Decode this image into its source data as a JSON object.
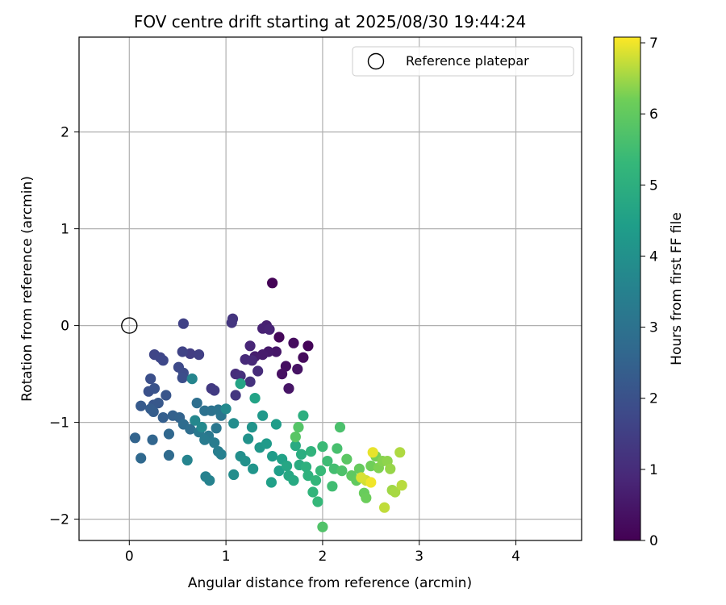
{
  "chart_data": {
    "type": "scatter",
    "title": "FOV centre drift starting at 2025/08/30 19:44:24",
    "xlabel": "Angular distance from reference (arcmin)",
    "ylabel": "Rotation from reference (arcmin)",
    "xlim": [
      -0.52,
      4.68
    ],
    "ylim": [
      -2.22,
      2.98
    ],
    "xticks": [
      0,
      1,
      2,
      3,
      4
    ],
    "yticks": [
      -2,
      -1,
      0,
      1,
      2
    ],
    "xtick_labels": [
      "0",
      "1",
      "2",
      "3",
      "4"
    ],
    "ytick_labels": [
      "−2",
      "−1",
      "0",
      "1",
      "2"
    ],
    "grid": true,
    "legend": {
      "position": "top-right",
      "entries": [
        "Reference platepar"
      ]
    },
    "reference_point": {
      "x": 0,
      "y": 0,
      "label": "Reference platepar"
    },
    "colorbar": {
      "label": "Hours from first FF file",
      "range": [
        0,
        7.08
      ],
      "ticks": [
        0,
        1,
        2,
        3,
        4,
        5,
        6,
        7
      ],
      "tick_labels": [
        "0",
        "1",
        "2",
        "3",
        "4",
        "5",
        "6",
        "7"
      ],
      "colormap": "viridis"
    },
    "points": [
      [
        1.48,
        0.44,
        0.05
      ],
      [
        1.85,
        -0.21,
        0.1
      ],
      [
        1.55,
        -0.12,
        0.15
      ],
      [
        1.8,
        -0.33,
        0.2
      ],
      [
        1.7,
        -0.18,
        0.25
      ],
      [
        1.62,
        -0.42,
        0.3
      ],
      [
        1.58,
        -0.5,
        0.35
      ],
      [
        1.74,
        -0.45,
        0.4
      ],
      [
        1.65,
        -0.65,
        0.45
      ],
      [
        1.52,
        -0.27,
        0.5
      ],
      [
        1.44,
        -0.27,
        0.55
      ],
      [
        1.38,
        -0.3,
        0.6
      ],
      [
        1.3,
        -0.32,
        0.65
      ],
      [
        1.42,
        0.0,
        0.7
      ],
      [
        1.38,
        -0.03,
        0.75
      ],
      [
        1.45,
        -0.04,
        0.8
      ],
      [
        1.25,
        -0.21,
        0.85
      ],
      [
        1.27,
        -0.36,
        0.9
      ],
      [
        1.2,
        -0.35,
        0.95
      ],
      [
        1.33,
        -0.47,
        1.0
      ],
      [
        1.1,
        -0.5,
        1.05
      ],
      [
        1.15,
        -0.52,
        1.1
      ],
      [
        1.25,
        -0.58,
        1.15
      ],
      [
        1.07,
        0.07,
        1.2
      ],
      [
        1.06,
        0.03,
        1.25
      ],
      [
        1.1,
        -0.72,
        1.3
      ],
      [
        0.85,
        -0.65,
        1.35
      ],
      [
        0.88,
        -0.67,
        1.4
      ],
      [
        0.63,
        -0.29,
        1.45
      ],
      [
        0.72,
        -0.3,
        1.5
      ],
      [
        0.56,
        0.02,
        1.55
      ],
      [
        0.55,
        -0.27,
        1.6
      ],
      [
        0.26,
        -0.3,
        1.65
      ],
      [
        0.32,
        -0.33,
        1.7
      ],
      [
        0.35,
        -0.36,
        1.75
      ],
      [
        0.51,
        -0.43,
        1.8
      ],
      [
        0.56,
        -0.49,
        1.85
      ],
      [
        0.55,
        -0.54,
        1.9
      ],
      [
        0.22,
        -0.55,
        1.95
      ],
      [
        0.2,
        -0.68,
        2.0
      ],
      [
        0.26,
        -0.65,
        2.05
      ],
      [
        0.38,
        -0.72,
        2.1
      ],
      [
        0.25,
        -0.82,
        2.15
      ],
      [
        0.3,
        -0.8,
        2.2
      ],
      [
        0.12,
        -0.83,
        2.25
      ],
      [
        0.22,
        -0.86,
        2.3
      ],
      [
        0.25,
        -0.89,
        2.35
      ],
      [
        0.35,
        -0.95,
        2.4
      ],
      [
        0.45,
        -0.93,
        2.45
      ],
      [
        0.52,
        -0.95,
        2.5
      ],
      [
        0.06,
        -1.16,
        2.55
      ],
      [
        0.24,
        -1.18,
        2.6
      ],
      [
        0.41,
        -1.12,
        2.65
      ],
      [
        0.12,
        -1.37,
        2.7
      ],
      [
        0.41,
        -1.34,
        2.75
      ],
      [
        0.56,
        -1.02,
        2.8
      ],
      [
        0.63,
        -1.07,
        2.85
      ],
      [
        0.7,
        -0.8,
        2.9
      ],
      [
        0.78,
        -0.88,
        2.95
      ],
      [
        0.85,
        -0.88,
        3.0
      ],
      [
        0.92,
        -0.87,
        3.05
      ],
      [
        0.95,
        -0.93,
        3.1
      ],
      [
        0.9,
        -1.06,
        3.15
      ],
      [
        0.82,
        -1.14,
        3.2
      ],
      [
        0.72,
        -1.1,
        3.25
      ],
      [
        0.78,
        -1.18,
        3.3
      ],
      [
        0.88,
        -1.21,
        3.35
      ],
      [
        0.92,
        -1.3,
        3.4
      ],
      [
        0.95,
        -1.33,
        3.45
      ],
      [
        0.79,
        -1.56,
        3.5
      ],
      [
        0.83,
        -1.6,
        3.55
      ],
      [
        0.6,
        -1.39,
        3.6
      ],
      [
        0.65,
        -0.55,
        3.65
      ],
      [
        0.68,
        -0.98,
        3.7
      ],
      [
        0.75,
        -1.05,
        3.75
      ],
      [
        1.0,
        -0.86,
        3.8
      ],
      [
        1.08,
        -1.01,
        3.85
      ],
      [
        1.08,
        -1.54,
        3.9
      ],
      [
        1.15,
        -1.35,
        3.95
      ],
      [
        1.2,
        -1.4,
        4.0
      ],
      [
        1.23,
        -1.17,
        4.05
      ],
      [
        1.27,
        -1.05,
        4.1
      ],
      [
        1.28,
        -1.48,
        4.15
      ],
      [
        1.35,
        -1.26,
        4.2
      ],
      [
        1.38,
        -0.93,
        4.25
      ],
      [
        1.42,
        -1.22,
        4.3
      ],
      [
        1.48,
        -1.35,
        4.35
      ],
      [
        1.52,
        -1.02,
        4.4
      ],
      [
        1.55,
        -1.5,
        4.45
      ],
      [
        1.47,
        -1.62,
        4.5
      ],
      [
        1.58,
        -1.38,
        4.55
      ],
      [
        1.3,
        -0.75,
        4.6
      ],
      [
        1.15,
        -0.6,
        4.65
      ],
      [
        1.63,
        -1.45,
        4.7
      ],
      [
        1.65,
        -1.55,
        4.75
      ],
      [
        1.7,
        -1.6,
        4.8
      ],
      [
        1.72,
        -1.24,
        4.85
      ],
      [
        1.76,
        -1.44,
        4.9
      ],
      [
        1.78,
        -1.33,
        4.95
      ],
      [
        1.8,
        -0.93,
        5.0
      ],
      [
        1.83,
        -1.46,
        5.05
      ],
      [
        1.85,
        -1.55,
        5.1
      ],
      [
        1.88,
        -1.3,
        5.15
      ],
      [
        1.9,
        -1.72,
        5.2
      ],
      [
        1.93,
        -1.6,
        5.25
      ],
      [
        1.95,
        -1.82,
        5.3
      ],
      [
        1.98,
        -1.5,
        5.35
      ],
      [
        2.0,
        -1.25,
        5.4
      ],
      [
        2.05,
        -1.4,
        5.45
      ],
      [
        2.1,
        -1.66,
        5.5
      ],
      [
        2.12,
        -1.48,
        5.55
      ],
      [
        2.15,
        -1.27,
        5.6
      ],
      [
        2.18,
        -1.05,
        5.65
      ],
      [
        2.2,
        -1.5,
        5.7
      ],
      [
        2.0,
        -2.08,
        5.75
      ],
      [
        1.75,
        -1.05,
        5.8
      ],
      [
        1.72,
        -1.15,
        5.85
      ],
      [
        2.25,
        -1.38,
        5.9
      ],
      [
        2.3,
        -1.55,
        5.95
      ],
      [
        2.35,
        -1.6,
        6.0
      ],
      [
        2.38,
        -1.48,
        6.05
      ],
      [
        2.43,
        -1.73,
        6.1
      ],
      [
        2.45,
        -1.78,
        6.15
      ],
      [
        2.5,
        -1.45,
        6.2
      ],
      [
        2.55,
        -1.35,
        6.25
      ],
      [
        2.58,
        -1.47,
        6.3
      ],
      [
        2.62,
        -1.4,
        6.35
      ],
      [
        2.67,
        -1.4,
        6.4
      ],
      [
        2.7,
        -1.48,
        6.45
      ],
      [
        2.72,
        -1.7,
        6.5
      ],
      [
        2.75,
        -1.72,
        6.55
      ],
      [
        2.8,
        -1.31,
        6.6
      ],
      [
        2.82,
        -1.65,
        6.65
      ],
      [
        2.64,
        -1.88,
        6.7
      ],
      [
        2.45,
        -1.6,
        6.8
      ],
      [
        2.4,
        -1.57,
        6.85
      ],
      [
        2.52,
        -1.31,
        6.95
      ],
      [
        2.5,
        -1.62,
        7.0
      ]
    ]
  }
}
